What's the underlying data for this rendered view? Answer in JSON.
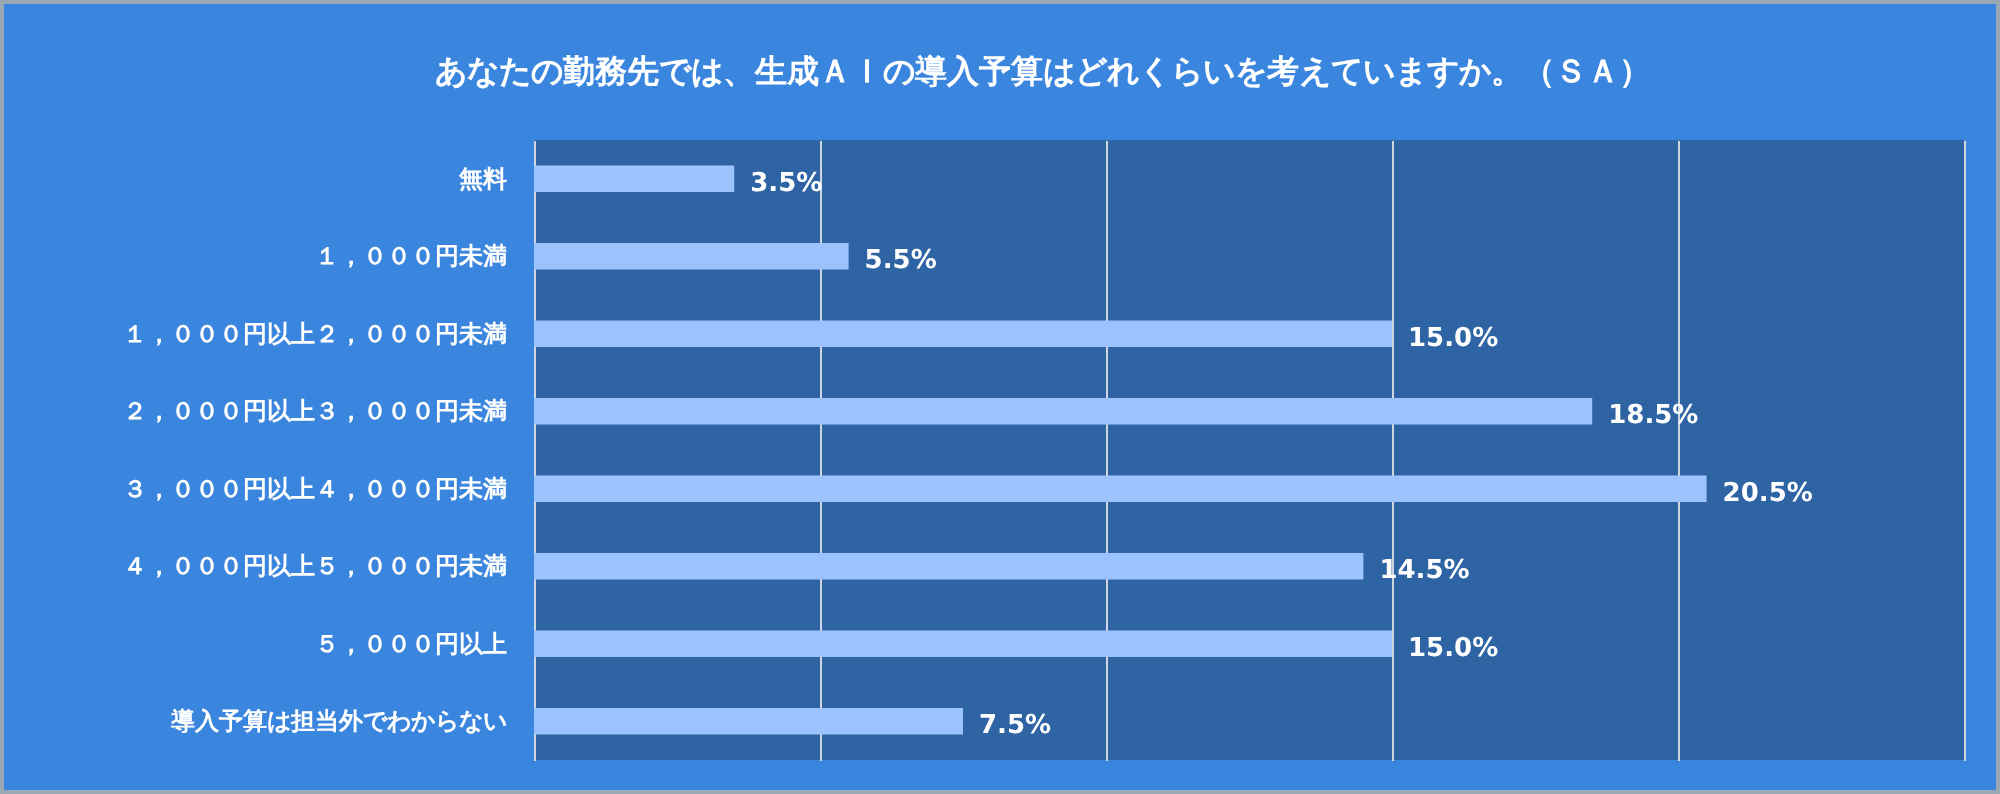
{
  "chart_data": {
    "type": "bar",
    "orientation": "horizontal",
    "title": "あなたの勤務先では、生成ＡＩの導入予算はどれくらいを考えていますか。（ＳＡ）",
    "categories": [
      "無料",
      "１，０００円未満",
      "１，０００円以上２，０００円未満",
      "２，０００円以上３，０００円未満",
      "３，０００円以上４，０００円未満",
      "４，０００円以上５，０００円未満",
      "５，０００円以上",
      "導入予算は担当外でわからない"
    ],
    "values": [
      3.5,
      5.5,
      15.0,
      18.5,
      20.5,
      14.5,
      15.0,
      7.5
    ],
    "value_labels": [
      "3.5%",
      "5.5%",
      "15.0%",
      "18.5%",
      "20.5%",
      "14.5%",
      "15.0%",
      "7.5%"
    ],
    "color": "#9dc3ff",
    "xlim": [
      0,
      25
    ],
    "xticks": [
      {
        "value": 0,
        "label": null
      },
      {
        "value": 5,
        "label": null
      },
      {
        "value": 10,
        "label": null
      },
      {
        "value": 15,
        "label": null
      },
      {
        "value": 20,
        "label": null
      },
      {
        "value": 25,
        "label": null
      }
    ],
    "grid": "x",
    "tick_labels": "y"
  }
}
